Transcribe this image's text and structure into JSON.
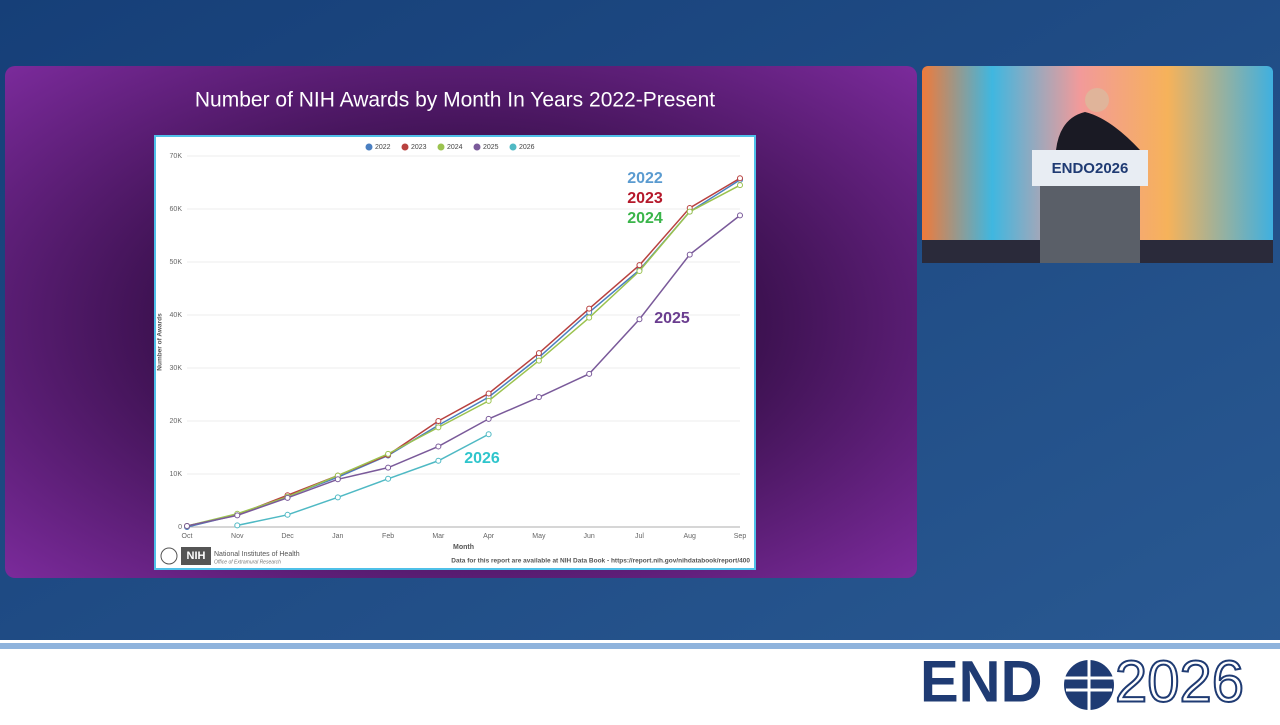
{
  "slide_title": "Number of NIH Awards by Month In Years 2022-Present",
  "chart_data": {
    "type": "line",
    "categories": [
      "Oct",
      "Nov",
      "Dec",
      "Jan",
      "Feb",
      "Mar",
      "Apr",
      "May",
      "Jun",
      "Jul",
      "Aug",
      "Sep"
    ],
    "x_label": "Month",
    "y_label": "Number of Awards",
    "ylim": [
      0,
      70000
    ],
    "yticks": [
      0,
      {
        "value": 10000,
        "label": "10K"
      },
      {
        "value": 20000,
        "label": "20K"
      },
      {
        "value": 30000,
        "label": "30K"
      },
      {
        "value": 40000,
        "label": "40K"
      },
      {
        "value": 50000,
        "label": "50K"
      },
      {
        "value": 60000,
        "label": "60K"
      },
      {
        "value": 70000,
        "label": "70K"
      }
    ],
    "grid": true,
    "legend": "top",
    "series": [
      {
        "name": "2022",
        "color": "#4a7fc1",
        "values": [
          0,
          2300,
          5800,
          9400,
          13500,
          19200,
          24500,
          32000,
          40500,
          48500,
          59500,
          65500
        ]
      },
      {
        "name": "2023",
        "color": "#b8413f",
        "values": [
          200,
          2300,
          6000,
          9700,
          13600,
          20000,
          25200,
          32800,
          41200,
          49400,
          60200,
          65800
        ]
      },
      {
        "name": "2024",
        "color": "#9bc34f",
        "values": [
          200,
          2500,
          5700,
          9700,
          13800,
          18800,
          23800,
          31400,
          39500,
          48300,
          59500,
          64500
        ]
      },
      {
        "name": "2025",
        "color": "#7a5a9a",
        "values": [
          200,
          2200,
          5500,
          9000,
          11200,
          15200,
          20400,
          24500,
          28900,
          39200,
          51400,
          58800
        ]
      },
      {
        "name": "2026",
        "color": "#4fb9c4",
        "values": [
          null,
          300,
          2300,
          5600,
          9100,
          12500,
          17500,
          null,
          null,
          null,
          null,
          null
        ]
      }
    ],
    "annotations": [
      {
        "text": "2022",
        "color": "#5a9bd0"
      },
      {
        "text": "2023",
        "color": "#b5182a"
      },
      {
        "text": "2024",
        "color": "#3ab54a"
      },
      {
        "text": "2025",
        "color": "#6a3d8f"
      },
      {
        "text": "2026",
        "color": "#2fc5cc"
      }
    ]
  },
  "footer": {
    "nih_badge": "NIH",
    "org": "National Institutes of Health",
    "office": "Office of Extramural Research",
    "source": "Data for this report are available at NIH Data Book - https://report.nih.gov/nihdatabook/report/400"
  },
  "podium_sign": "ENDO2026",
  "logo": {
    "left": "END",
    "right": "2026"
  }
}
